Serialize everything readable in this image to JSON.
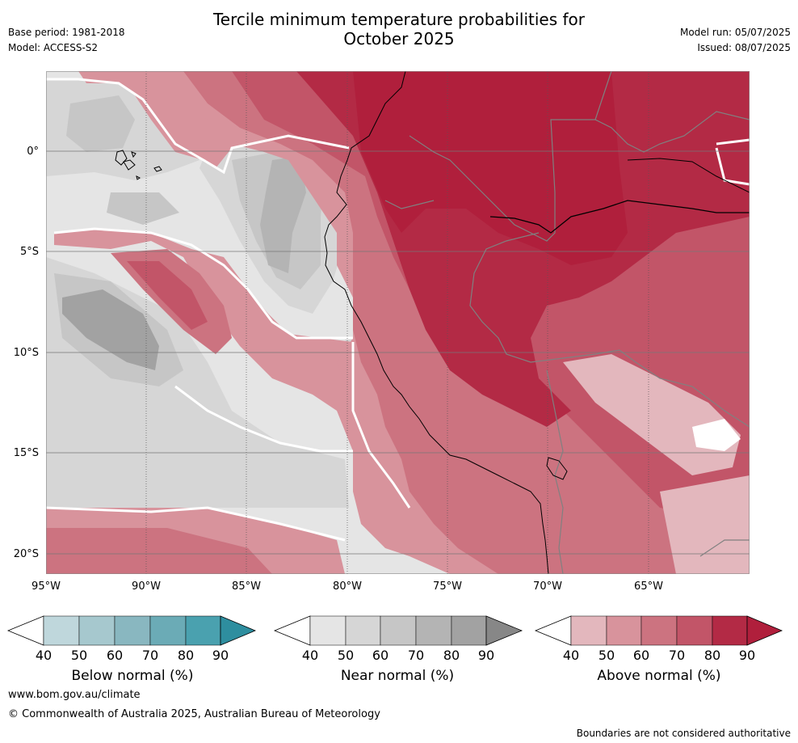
{
  "header": {
    "title_line1": "Tercile minimum temperature probabilities for",
    "title_line2": "October 2025",
    "base_period": "Base period: 1981-2018",
    "model": "Model: ACCESS-S2",
    "model_run": "Model run: 05/07/2025",
    "issued": "Issued: 08/07/2025"
  },
  "map": {
    "lat_labels": [
      "0°",
      "5°S",
      "10°S",
      "15°S",
      "20°S"
    ],
    "lon_labels": [
      "95°W",
      "90°W",
      "85°W",
      "80°W",
      "75°W",
      "70°W",
      "65°W"
    ]
  },
  "colorbars": [
    {
      "title": "Below normal (%)",
      "ticks": [
        "40",
        "50",
        "60",
        "70",
        "80",
        "90"
      ],
      "colors": [
        "#ffffff",
        "#bfd7dc",
        "#a6c8ce",
        "#89b7c0",
        "#6babb6",
        "#4aa1af",
        "#2e8e9f"
      ]
    },
    {
      "title": "Near normal (%)",
      "ticks": [
        "40",
        "50",
        "60",
        "70",
        "80",
        "90"
      ],
      "colors": [
        "#ffffff",
        "#e5e5e5",
        "#d6d6d6",
        "#c6c6c6",
        "#b4b4b4",
        "#a2a2a2",
        "#878787"
      ]
    },
    {
      "title": "Above normal (%)",
      "ticks": [
        "40",
        "50",
        "60",
        "70",
        "80",
        "90"
      ],
      "colors": [
        "#ffffff",
        "#e3b7bd",
        "#d8939c",
        "#cc7380",
        "#c25568",
        "#b32a45",
        "#b01f3c"
      ]
    }
  ],
  "footer": {
    "website": "www.bom.gov.au/climate",
    "copyright": "© Commonwealth of Australia 2025, Australian Bureau of Meteorology",
    "disclaimer": "Boundaries are not considered authoritative"
  }
}
